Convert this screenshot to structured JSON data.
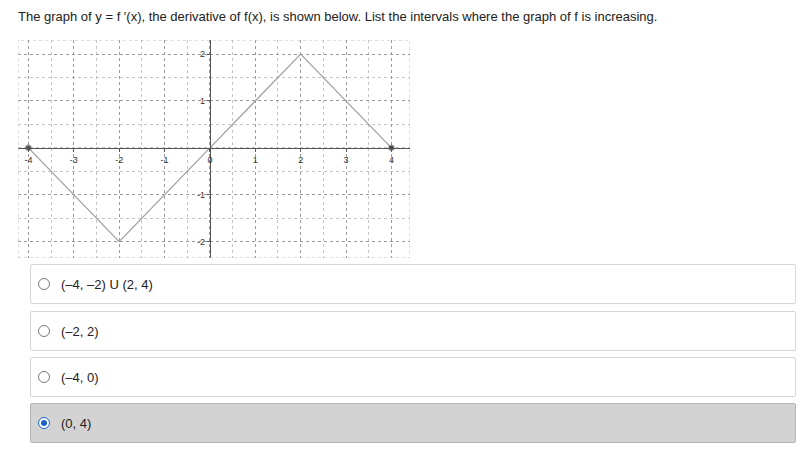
{
  "question": "The graph of y = f ′(x), the derivative of f(x), is shown below. List the intervals where the graph of f is increasing.",
  "chart_data": {
    "type": "line",
    "x": [
      -4,
      -2,
      0,
      2,
      4
    ],
    "values": [
      0,
      -2,
      0,
      2,
      0
    ],
    "color": "#a0a0a0",
    "xlim": [
      -4.23,
      4.41
    ],
    "ylim": [
      -2.35,
      2.3
    ],
    "xticks": [
      -4,
      -3,
      -2,
      -1,
      0,
      1,
      2,
      3,
      4
    ],
    "yticks": [
      -2,
      -1,
      1,
      2
    ],
    "grid": true,
    "marker": "endpoints"
  },
  "options": [
    "(–4, –2) U (2, 4)",
    "(–2, 2)",
    "(–4, 0)",
    "(0, 4)"
  ],
  "selected": 3
}
